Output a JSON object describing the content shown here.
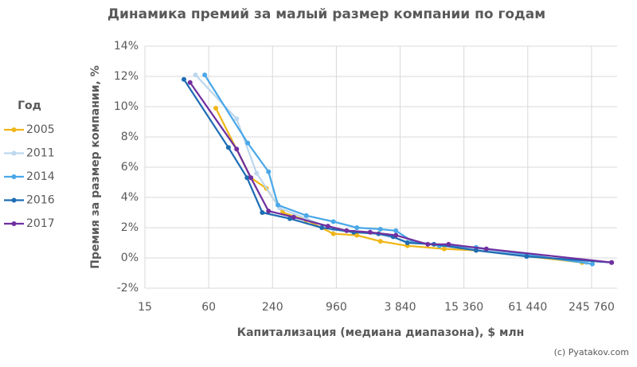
{
  "chart_data": {
    "type": "line",
    "title": "Динамика премий за малый размер компании по годам",
    "x_label": "Капитализация (медиана диапазона), $ млн",
    "y_label": "Премия за размер компании, %",
    "legend_title": "Год",
    "credit": "(c) Pyatakov.com",
    "x_scale": "log",
    "grid": true,
    "legend": "left",
    "xlim": [
      15,
      428000
    ],
    "ylim": [
      -2,
      14
    ],
    "xticks": [
      15,
      60,
      240,
      960,
      {
        "value": 3840,
        "label": "3 840"
      },
      {
        "value": 15360,
        "label": "15 360"
      },
      {
        "value": 61440,
        "label": "61 440"
      },
      {
        "value": 245760,
        "label": "245 760"
      }
    ],
    "yticks": [
      {
        "value": -2,
        "label": "-2%"
      },
      {
        "value": 0,
        "label": "0%"
      },
      {
        "value": 2,
        "label": "2%"
      },
      {
        "value": 4,
        "label": "4%"
      },
      {
        "value": 6,
        "label": "6%"
      },
      {
        "value": 8,
        "label": "8%"
      },
      {
        "value": 10,
        "label": "10%"
      },
      {
        "value": 12,
        "label": "12%"
      },
      {
        "value": 14,
        "label": "14%"
      }
    ],
    "series": [
      {
        "name": "2005",
        "color": "#f0b71a",
        "x": [
          70,
          150,
          210,
          300,
          500,
          900,
          1500,
          2500,
          4500,
          10000,
          20000,
          200000
        ],
        "values": [
          9.9,
          5.3,
          4.6,
          3.0,
          2.5,
          1.6,
          1.5,
          1.1,
          0.8,
          0.6,
          0.5,
          -0.3
        ]
      },
      {
        "name": "2011",
        "color": "#bdd7ee",
        "x": [
          45,
          110,
          170,
          280,
          500,
          900,
          2000,
          4500,
          12000,
          220000
        ],
        "values": [
          12.1,
          9.2,
          5.6,
          3.3,
          2.6,
          1.9,
          1.7,
          1.1,
          0.8,
          -0.3
        ]
      },
      {
        "name": "2014",
        "color": "#4aa8e8",
        "x": [
          55,
          140,
          220,
          270,
          500,
          900,
          1500,
          2500,
          3500,
          5000,
          9000,
          20000,
          250000
        ],
        "values": [
          12.1,
          7.6,
          5.7,
          3.5,
          2.8,
          2.4,
          2.0,
          1.9,
          1.8,
          1.1,
          0.8,
          0.7,
          -0.4
        ]
      },
      {
        "name": "2016",
        "color": "#1f6db3",
        "x": [
          35,
          92,
          138,
          192,
          350,
          700,
          1400,
          2400,
          3300,
          4500,
          8000,
          20000,
          60000,
          380000
        ],
        "values": [
          11.8,
          7.3,
          5.3,
          3.0,
          2.6,
          2.0,
          1.7,
          1.6,
          1.4,
          1.0,
          0.9,
          0.5,
          0.1,
          -0.3
        ]
      },
      {
        "name": "2017",
        "color": "#7030a0",
        "x": [
          40,
          110,
          150,
          220,
          380,
          800,
          1200,
          2000,
          3500,
          7000,
          11000,
          25000,
          380000
        ],
        "values": [
          11.6,
          7.2,
          5.3,
          3.1,
          2.7,
          2.1,
          1.8,
          1.7,
          1.5,
          0.9,
          0.9,
          0.6,
          -0.3
        ]
      }
    ]
  }
}
